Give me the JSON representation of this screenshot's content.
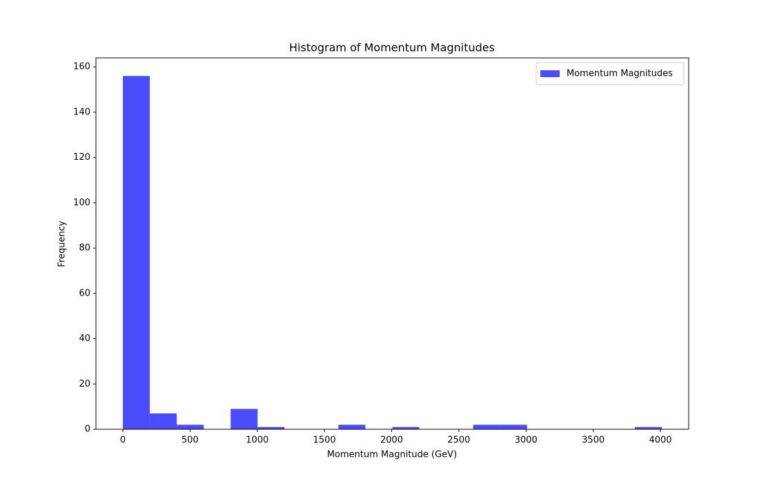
{
  "chart_data": {
    "type": "histogram",
    "title": "Histogram of Momentum Magnitudes",
    "x_label": "Momentum Magnitude (GeV)",
    "y_label": "Frequency",
    "bins": [
      0,
      200.5,
      401,
      601.5,
      802,
      1002.5,
      1203,
      1403.5,
      1604,
      1804.5,
      2005,
      2205.5,
      2406,
      2606.5,
      2807,
      3007.5,
      3208,
      3408.5,
      3609,
      3809.5,
      4010
    ],
    "series": [
      {
        "name": "Momentum Magnitudes",
        "color": "#0000ff",
        "alpha": 0.7,
        "values": [
          156,
          7,
          2,
          0,
          9,
          1,
          0,
          0,
          2,
          0,
          1,
          0,
          0,
          2,
          2,
          0,
          0,
          0,
          0,
          1
        ]
      }
    ],
    "xlim": [
      -200.5,
      4210.5
    ],
    "ylim": [
      0,
      164
    ],
    "xticks": [
      0,
      500,
      1000,
      1500,
      2000,
      2500,
      3000,
      3500,
      4000
    ],
    "yticks": [
      0,
      20,
      40,
      60,
      80,
      100,
      120,
      140,
      160
    ],
    "grid": false,
    "legend": "upper right"
  }
}
